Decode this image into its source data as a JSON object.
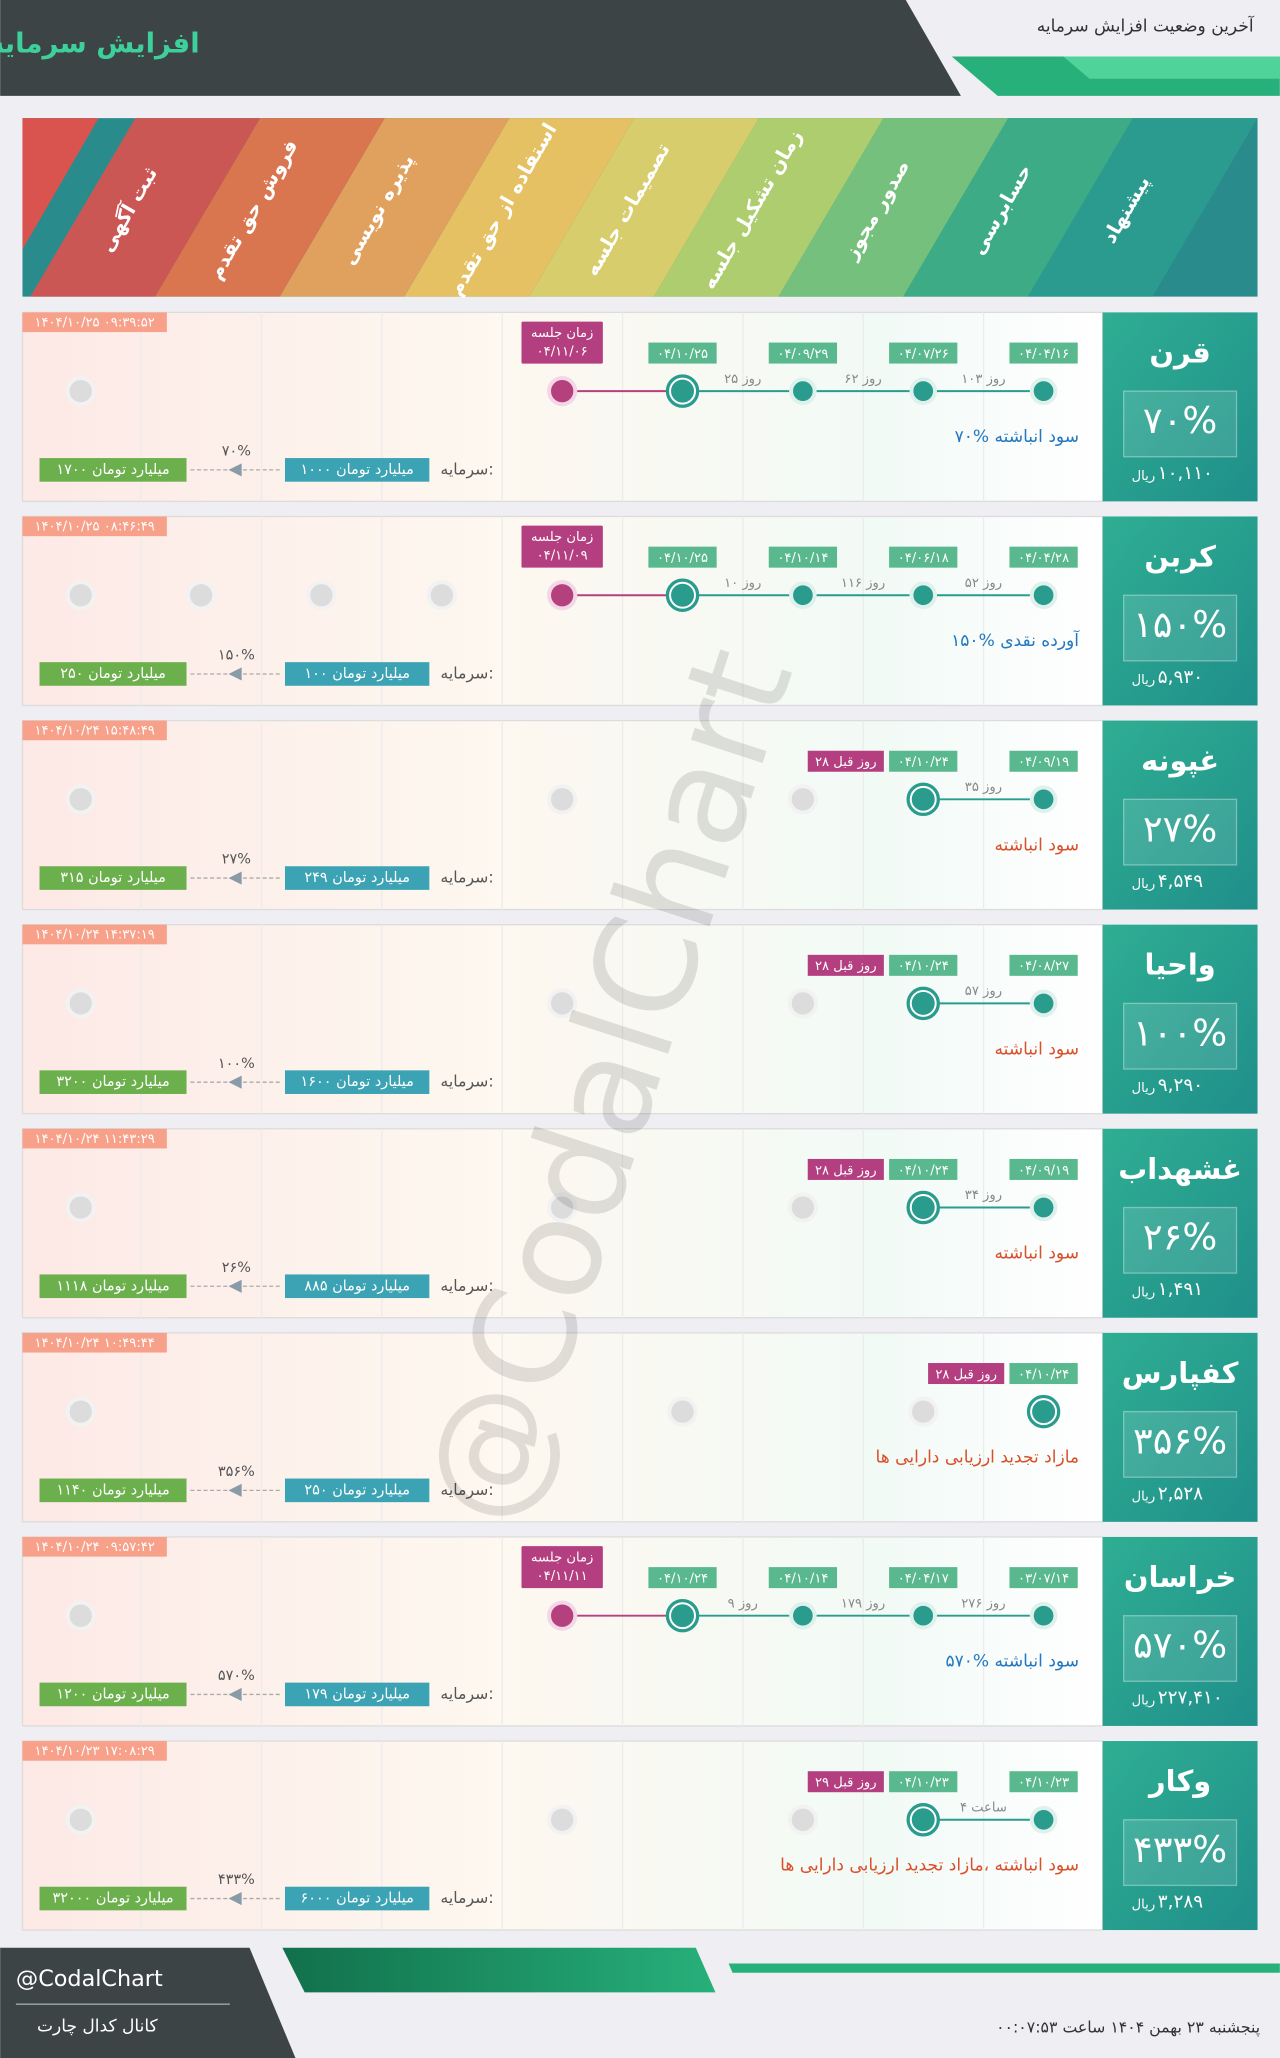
{
  "header": {
    "title": "افزایش سرمایه",
    "subtitle": "آخرین وضعیت افزایش سرمایه"
  },
  "stages": [
    "پیشنهاد",
    "حسابرسی",
    "صدور مجوز",
    "زمان تشکیل جلسه",
    "تصمیمات جلسه",
    "استفاده از حق تقدم",
    "پذیره نویسی",
    "فروش حق تقدم",
    "ثبت آگهی"
  ],
  "watermark": "@CodalChart",
  "capital_label": "سرمایه:",
  "rial_label": "ریال",
  "rows": [
    {
      "name": "قرن",
      "percent": "۷۰%",
      "price": "۱۰,۱۱۰",
      "timestamp": "۱۴۰۴/۱۰/۲۵ ۰۹:۳۹:۵۲",
      "dates": [
        "۰۴/۰۴/۱۶",
        "۰۴/۰۷/۲۶",
        "۰۴/۰۹/۲۹",
        "۰۴/۱۰/۲۵"
      ],
      "gaps": [
        "۱۰۳ روز",
        "۶۲ روز",
        "۲۵ روز"
      ],
      "meeting": [
        "زمان جلسه",
        "۰۴/۱۱/۰۶"
      ],
      "description": "۷۰% سود انباشته",
      "description_color": "#2478c0",
      "capital_from": "۱۰۰۰ میلیارد تومان",
      "capital_percent": "۷۰%",
      "capital_to": "۱۷۰۰ میلیارد تومان"
    },
    {
      "name": "کربن",
      "percent": "۱۵۰%",
      "price": "۵,۹۳۰",
      "timestamp": "۱۴۰۴/۱۰/۲۵ ۰۸:۴۶:۴۹",
      "dates": [
        "۰۴/۰۴/۲۸",
        "۰۴/۰۶/۱۸",
        "۰۴/۱۰/۱۴",
        "۰۴/۱۰/۲۵"
      ],
      "gaps": [
        "۵۲ روز",
        "۱۱۶ روز",
        "۱۰ روز"
      ],
      "meeting": [
        "زمان جلسه",
        "۰۴/۱۱/۰۹"
      ],
      "description": "۱۵۰% آورده نقدی",
      "description_color": "#2478c0",
      "capital_from": "۱۰۰ میلیارد تومان",
      "capital_percent": "۱۵۰%",
      "capital_to": "۲۵۰ میلیارد تومان"
    },
    {
      "name": "غپونه",
      "percent": "۲۷%",
      "price": "۴,۵۴۹",
      "timestamp": "۱۴۰۴/۱۰/۲۴ ۱۵:۴۸:۴۹",
      "dates": [
        "۰۴/۰۹/۱۹",
        "۰۴/۱۰/۲۴"
      ],
      "gaps": [
        "۳۵ روز"
      ],
      "ago": "۲۸ روز قبل",
      "description": "سود انباشته",
      "description_color": "#d9502a",
      "capital_from": "۲۴۹ میلیارد تومان",
      "capital_percent": "۲۷%",
      "capital_to": "۳۱۵ میلیارد تومان"
    },
    {
      "name": "واحیا",
      "percent": "۱۰۰%",
      "price": "۹,۲۹۰",
      "timestamp": "۱۴۰۴/۱۰/۲۴ ۱۴:۳۷:۱۹",
      "dates": [
        "۰۴/۰۸/۲۷",
        "۰۴/۱۰/۲۴"
      ],
      "gaps": [
        "۵۷ روز"
      ],
      "ago": "۲۸ روز قبل",
      "description": "سود انباشته",
      "description_color": "#d9502a",
      "capital_from": "۱۶۰۰ میلیارد تومان",
      "capital_percent": "۱۰۰%",
      "capital_to": "۳۲۰۰ میلیارد تومان"
    },
    {
      "name": "غشهداب",
      "percent": "۲۶%",
      "price": "۱,۴۹۱",
      "timestamp": "۱۴۰۴/۱۰/۲۴ ۱۱:۴۳:۲۹",
      "dates": [
        "۰۴/۰۹/۱۹",
        "۰۴/۱۰/۲۴"
      ],
      "gaps": [
        "۳۴ روز"
      ],
      "ago": "۲۸ روز قبل",
      "description": "سود انباشته",
      "description_color": "#d9502a",
      "capital_from": "۸۸۵ میلیارد تومان",
      "capital_percent": "۲۶%",
      "capital_to": "۱۱۱۸ میلیارد تومان"
    },
    {
      "name": "کفپارس",
      "percent": "۳۵۶%",
      "price": "۲,۵۲۸",
      "timestamp": "۱۴۰۴/۱۰/۲۴ ۱۰:۴۹:۴۴",
      "dates": [
        "۰۴/۱۰/۲۴"
      ],
      "gaps": [],
      "ago": "۲۸ روز قبل",
      "description": "مازاد تجدید ارزیابی دارایی ها",
      "description_color": "#d9502a",
      "capital_from": "۲۵۰ میلیارد تومان",
      "capital_percent": "۳۵۶%",
      "capital_to": "۱۱۴۰ میلیارد تومان"
    },
    {
      "name": "خراسان",
      "percent": "۵۷۰%",
      "price": "۲۲۷,۴۱۰",
      "timestamp": "۱۴۰۴/۱۰/۲۴ ۰۹:۵۷:۴۲",
      "dates": [
        "۰۳/۰۷/۱۴",
        "۰۴/۰۴/۱۷",
        "۰۴/۱۰/۱۴",
        "۰۴/۱۰/۲۴"
      ],
      "gaps": [
        "۲۷۶ روز",
        "۱۷۹ روز",
        "۹ روز"
      ],
      "meeting": [
        "زمان جلسه",
        "۰۴/۱۱/۱۱"
      ],
      "description": "۵۷۰% سود انباشته",
      "description_color": "#2478c0",
      "capital_from": "۱۷۹ میلیارد تومان",
      "capital_percent": "۵۷۰%",
      "capital_to": "۱۲۰۰ میلیارد تومان"
    },
    {
      "name": "وکار",
      "percent": "۴۳۳%",
      "price": "۳,۲۸۹",
      "timestamp": "۱۴۰۴/۱۰/۲۳ ۱۷:۰۸:۲۹",
      "dates": [
        "۰۴/۱۰/۲۳",
        "۰۴/۱۰/۲۳"
      ],
      "gaps": [
        "۴ ساعت"
      ],
      "ago": "۲۹ روز قبل",
      "description": "سود انباشته ،مازاد تجدید ارزیابی دارایی ها",
      "description_color": "#d9502a",
      "capital_from": "۶۰۰۰ میلیارد تومان",
      "capital_percent": "۴۳۳%",
      "capital_to": "۳۲۰۰۰ میلیارد تومان"
    }
  ],
  "footer": {
    "handle": "@CodalChart",
    "channel": "کانال کدال چارت",
    "datetime": "پنجشنبه ۲۳ بهمن ۱۴۰۴ ساعت ۰۰:۰۷:۵۳"
  }
}
